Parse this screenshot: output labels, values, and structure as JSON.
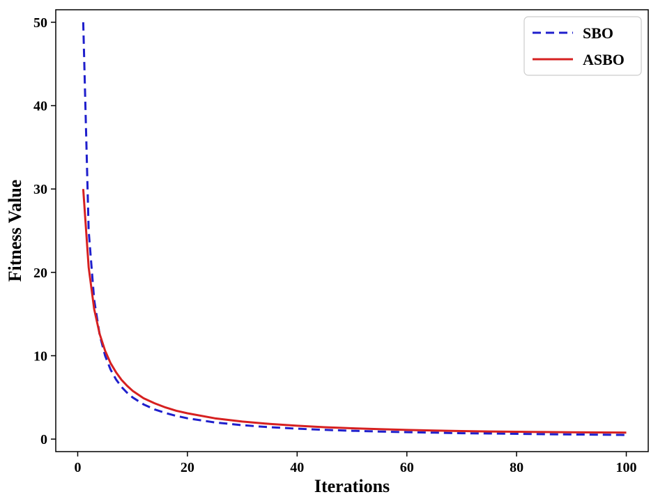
{
  "chart_data": {
    "type": "line",
    "xlabel": "Iterations",
    "ylabel": "Fitness Value",
    "xlim": [
      -4,
      104
    ],
    "ylim": [
      -1.5,
      51.5
    ],
    "xticks": [
      0,
      20,
      40,
      60,
      80,
      100
    ],
    "yticks": [
      0,
      10,
      20,
      30,
      40,
      50
    ],
    "grid": false,
    "legend_position": "top-right",
    "series": [
      {
        "name": "SBO",
        "color": "#1f1fcc",
        "style": "dashed",
        "x": [
          1,
          2,
          3,
          4,
          5,
          6,
          7,
          8,
          9,
          10,
          12,
          14,
          16,
          18,
          20,
          25,
          30,
          35,
          40,
          45,
          50,
          55,
          60,
          65,
          70,
          75,
          80,
          85,
          90,
          95,
          100
        ],
        "y": [
          50.0,
          25.0,
          16.7,
          12.5,
          10.0,
          8.33,
          7.14,
          6.25,
          5.56,
          5.0,
          4.17,
          3.57,
          3.13,
          2.78,
          2.5,
          2.0,
          1.67,
          1.43,
          1.25,
          1.11,
          1.0,
          0.91,
          0.83,
          0.77,
          0.71,
          0.67,
          0.63,
          0.59,
          0.56,
          0.53,
          0.5
        ]
      },
      {
        "name": "ASBO",
        "color": "#d62020",
        "style": "solid",
        "x": [
          1,
          2,
          3,
          4,
          5,
          6,
          7,
          8,
          9,
          10,
          12,
          14,
          16,
          18,
          20,
          25,
          30,
          35,
          40,
          45,
          50,
          55,
          60,
          65,
          70,
          75,
          80,
          85,
          90,
          95,
          100
        ],
        "y": [
          30.0,
          20.6,
          15.6,
          12.6,
          10.6,
          9.1,
          8.0,
          7.1,
          6.4,
          5.8,
          4.9,
          4.3,
          3.8,
          3.4,
          3.1,
          2.5,
          2.1,
          1.82,
          1.6,
          1.43,
          1.3,
          1.19,
          1.1,
          1.03,
          0.97,
          0.92,
          0.88,
          0.85,
          0.82,
          0.8,
          0.78
        ]
      }
    ]
  }
}
